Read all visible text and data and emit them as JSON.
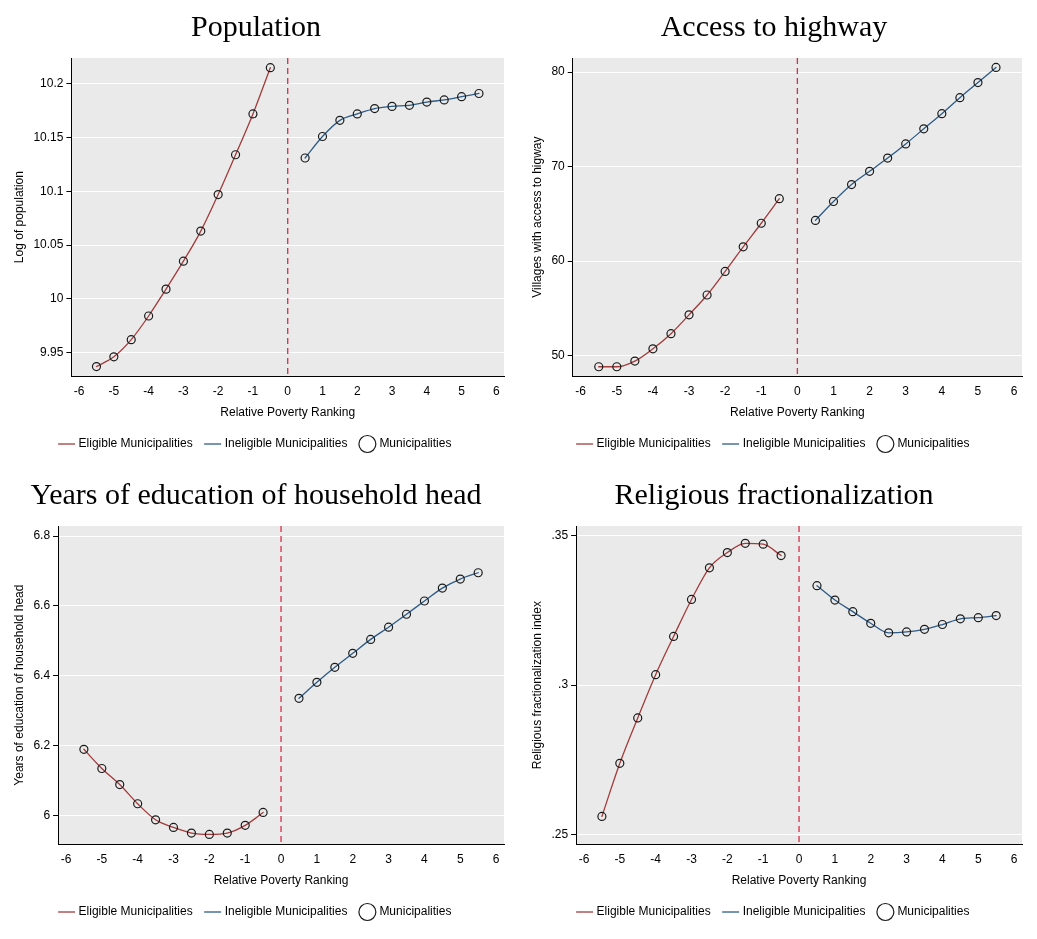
{
  "chart_data": [
    {
      "type": "line",
      "title": "Population",
      "xlabel": "Relative Poverty Ranking",
      "ylabel": "Log of population",
      "xlim": [
        -6.22,
        6.22
      ],
      "xticks": [
        -6,
        -5,
        -4,
        -3,
        -2,
        -1,
        0,
        1,
        2,
        3,
        4,
        5,
        6
      ],
      "ylim": [
        9.928,
        10.224
      ],
      "yticks": [
        {
          "value": 9.95,
          "label": "9.95"
        },
        {
          "value": 10,
          "label": "10"
        },
        {
          "value": 10.05,
          "label": "10.05"
        },
        {
          "value": 10.1,
          "label": "10.1"
        },
        {
          "value": 10.15,
          "label": "10.15"
        },
        {
          "value": 10.2,
          "label": "10.2"
        }
      ],
      "grid": "y",
      "legend": "bottom",
      "ref_lines": [
        {
          "axis": "x",
          "value": 0,
          "color": "#d62d4a",
          "line_style": "dashed"
        }
      ],
      "series": [
        {
          "name": "Eligible Municipalities",
          "type": "line",
          "marker": "none",
          "color": "#a33b3b",
          "x": [
            -5.5,
            -5,
            -4.5,
            -4,
            -3.5,
            -3,
            -2.5,
            -2,
            -1.5,
            -1,
            -0.5
          ],
          "values": [
            9.937,
            9.946,
            9.962,
            9.984,
            10.009,
            10.035,
            10.063,
            10.097,
            10.134,
            10.172,
            10.215
          ]
        },
        {
          "name": "Ineligible Municipalities",
          "type": "line",
          "marker": "none",
          "color": "#2c5b87",
          "x": [
            0.5,
            1,
            1.5,
            2,
            2.5,
            3,
            3.5,
            4,
            4.5,
            5,
            5.5
          ],
          "values": [
            10.131,
            10.151,
            10.166,
            10.172,
            10.177,
            10.179,
            10.18,
            10.183,
            10.185,
            10.188,
            10.191
          ]
        },
        {
          "name": "Municipalities",
          "type": "scatter",
          "marker": "circle",
          "color": "#1a1a1a",
          "x": [
            -5.5,
            -5,
            -4.5,
            -4,
            -3.5,
            -3,
            -2.5,
            -2,
            -1.5,
            -1,
            -0.5,
            0.5,
            1,
            1.5,
            2,
            2.5,
            3,
            3.5,
            4,
            4.5,
            5,
            5.5
          ],
          "values": [
            9.937,
            9.946,
            9.962,
            9.984,
            10.009,
            10.035,
            10.063,
            10.097,
            10.134,
            10.172,
            10.215,
            10.131,
            10.151,
            10.166,
            10.172,
            10.177,
            10.179,
            10.18,
            10.183,
            10.185,
            10.188,
            10.191
          ]
        }
      ]
    },
    {
      "type": "line",
      "title": "Access to highway",
      "xlabel": "Relative Poverty Ranking",
      "ylabel": "Villages with access to higway",
      "xlim": [
        -6.22,
        6.22
      ],
      "xticks": [
        -6,
        -5,
        -4,
        -3,
        -2,
        -1,
        0,
        1,
        2,
        3,
        4,
        5,
        6
      ],
      "ylim": [
        47.8,
        81.5
      ],
      "yticks": [
        50,
        60,
        70,
        80
      ],
      "grid": "y",
      "legend": "bottom",
      "ref_lines": [
        {
          "axis": "x",
          "value": 0,
          "color": "#d62d4a",
          "line_style": "dashed"
        }
      ],
      "series": [
        {
          "name": "Eligible Municipalities",
          "type": "line",
          "marker": "none",
          "color": "#a33b3b",
          "x": [
            -5.5,
            -5,
            -4.5,
            -4,
            -3.5,
            -3,
            -2.5,
            -2,
            -1.5,
            -1,
            -0.5
          ],
          "values": [
            48.8,
            48.8,
            49.4,
            50.7,
            52.3,
            54.3,
            56.4,
            58.9,
            61.5,
            64.0,
            66.6
          ]
        },
        {
          "name": "Ineligible Municipalities",
          "type": "line",
          "marker": "none",
          "color": "#2c5b87",
          "x": [
            0.5,
            1,
            1.5,
            2,
            2.5,
            3,
            3.5,
            4,
            4.5,
            5,
            5.5
          ],
          "values": [
            64.3,
            66.3,
            68.1,
            69.5,
            70.9,
            72.4,
            74.0,
            75.6,
            77.3,
            78.9,
            80.5
          ]
        },
        {
          "name": "Municipalities",
          "type": "scatter",
          "marker": "circle",
          "color": "#1a1a1a",
          "x": [
            -5.5,
            -5,
            -4.5,
            -4,
            -3.5,
            -3,
            -2.5,
            -2,
            -1.5,
            -1,
            -0.5,
            0.5,
            1,
            1.5,
            2,
            2.5,
            3,
            3.5,
            4,
            4.5,
            5,
            5.5
          ],
          "values": [
            48.8,
            48.8,
            49.4,
            50.7,
            52.3,
            54.3,
            56.4,
            58.9,
            61.5,
            64.0,
            66.6,
            64.3,
            66.3,
            68.1,
            69.5,
            70.9,
            72.4,
            74.0,
            75.6,
            77.3,
            78.9,
            80.5
          ]
        }
      ]
    },
    {
      "type": "line",
      "title": "Years of education of household head",
      "xlabel": "Relative Poverty Ranking",
      "ylabel": "Years of education of household head",
      "xlim": [
        -6.22,
        6.22
      ],
      "xticks": [
        -6,
        -5,
        -4,
        -3,
        -2,
        -1,
        0,
        1,
        2,
        3,
        4,
        5,
        6
      ],
      "ylim": [
        5.917,
        6.829
      ],
      "yticks": [
        6,
        {
          "value": 6.2,
          "label": "6.2"
        },
        {
          "value": 6.4,
          "label": "6.4"
        },
        {
          "value": 6.6,
          "label": "6.6"
        },
        {
          "value": 6.8,
          "label": "6.8"
        }
      ],
      "grid": "y",
      "legend": "bottom",
      "ref_lines": [
        {
          "axis": "x",
          "value": 0,
          "color": "#d62d4a",
          "line_style": "dashed"
        }
      ],
      "series": [
        {
          "name": "Eligible Municipalities",
          "type": "line",
          "marker": "none",
          "color": "#a33b3b",
          "x": [
            -5.5,
            -5,
            -4.5,
            -4,
            -3.5,
            -3,
            -2.5,
            -2,
            -1.5,
            -1,
            -0.5
          ],
          "values": [
            6.189,
            6.134,
            6.088,
            6.033,
            5.987,
            5.965,
            5.949,
            5.945,
            5.949,
            5.971,
            6.008
          ]
        },
        {
          "name": "Ineligible Municipalities",
          "type": "line",
          "marker": "none",
          "color": "#2c5b87",
          "x": [
            0.5,
            1,
            1.5,
            2,
            2.5,
            3,
            3.5,
            4,
            4.5,
            5,
            5.5
          ],
          "values": [
            6.335,
            6.381,
            6.424,
            6.464,
            6.504,
            6.539,
            6.576,
            6.614,
            6.651,
            6.677,
            6.695
          ]
        },
        {
          "name": "Municipalities",
          "type": "scatter",
          "marker": "circle",
          "color": "#1a1a1a",
          "x": [
            -5.5,
            -5,
            -4.5,
            -4,
            -3.5,
            -3,
            -2.5,
            -2,
            -1.5,
            -1,
            -0.5,
            0.5,
            1,
            1.5,
            2,
            2.5,
            3,
            3.5,
            4,
            4.5,
            5,
            5.5
          ],
          "values": [
            6.189,
            6.134,
            6.088,
            6.033,
            5.987,
            5.965,
            5.949,
            5.945,
            5.949,
            5.971,
            6.008,
            6.335,
            6.381,
            6.424,
            6.464,
            6.504,
            6.539,
            6.576,
            6.614,
            6.651,
            6.677,
            6.695
          ]
        }
      ]
    },
    {
      "type": "line",
      "title": "Religious fractionalization",
      "xlabel": "Relative Poverty Ranking",
      "ylabel": "Religious fractionalization index",
      "xlim": [
        -6.22,
        6.22
      ],
      "xticks": [
        -6,
        -5,
        -4,
        -3,
        -2,
        -1,
        0,
        1,
        2,
        3,
        4,
        5,
        6
      ],
      "ylim": [
        0.2467,
        0.3533
      ],
      "yticks": [
        {
          "value": 0.25,
          "label": ".25"
        },
        {
          "value": 0.3,
          "label": ".3"
        },
        {
          "value": 0.35,
          "label": ".35"
        }
      ],
      "grid": "y",
      "legend": "bottom",
      "ref_lines": [
        {
          "axis": "x",
          "value": 0,
          "color": "#d62d4a",
          "line_style": "dashed"
        }
      ],
      "series": [
        {
          "name": "Eligible Municipalities",
          "type": "line",
          "marker": "none",
          "color": "#a33b3b",
          "x": [
            -5.5,
            -5,
            -4.5,
            -4,
            -3.5,
            -3,
            -2.5,
            -2,
            -1.5,
            -1,
            -0.5
          ],
          "values": [
            0.256,
            0.2738,
            0.289,
            0.3035,
            0.3163,
            0.3287,
            0.3393,
            0.3444,
            0.3475,
            0.3472,
            0.3434
          ]
        },
        {
          "name": "Ineligible Municipalities",
          "type": "line",
          "marker": "none",
          "color": "#2c5b87",
          "x": [
            0.5,
            1,
            1.5,
            2,
            2.5,
            3,
            3.5,
            4,
            4.5,
            5,
            5.5
          ],
          "values": [
            0.3333,
            0.3285,
            0.3246,
            0.3207,
            0.3175,
            0.3178,
            0.3187,
            0.3203,
            0.3222,
            0.3226,
            0.3233
          ]
        },
        {
          "name": "Municipalities",
          "type": "scatter",
          "marker": "circle",
          "color": "#1a1a1a",
          "x": [
            -5.5,
            -5,
            -4.5,
            -4,
            -3.5,
            -3,
            -2.5,
            -2,
            -1.5,
            -1,
            -0.5,
            0.5,
            1,
            1.5,
            2,
            2.5,
            3,
            3.5,
            4,
            4.5,
            5,
            5.5
          ],
          "values": [
            0.256,
            0.2738,
            0.289,
            0.3035,
            0.3163,
            0.3287,
            0.3393,
            0.3444,
            0.3475,
            0.3472,
            0.3434,
            0.3333,
            0.3285,
            0.3246,
            0.3207,
            0.3175,
            0.3178,
            0.3187,
            0.3203,
            0.3222,
            0.3226,
            0.3233
          ]
        }
      ]
    }
  ]
}
